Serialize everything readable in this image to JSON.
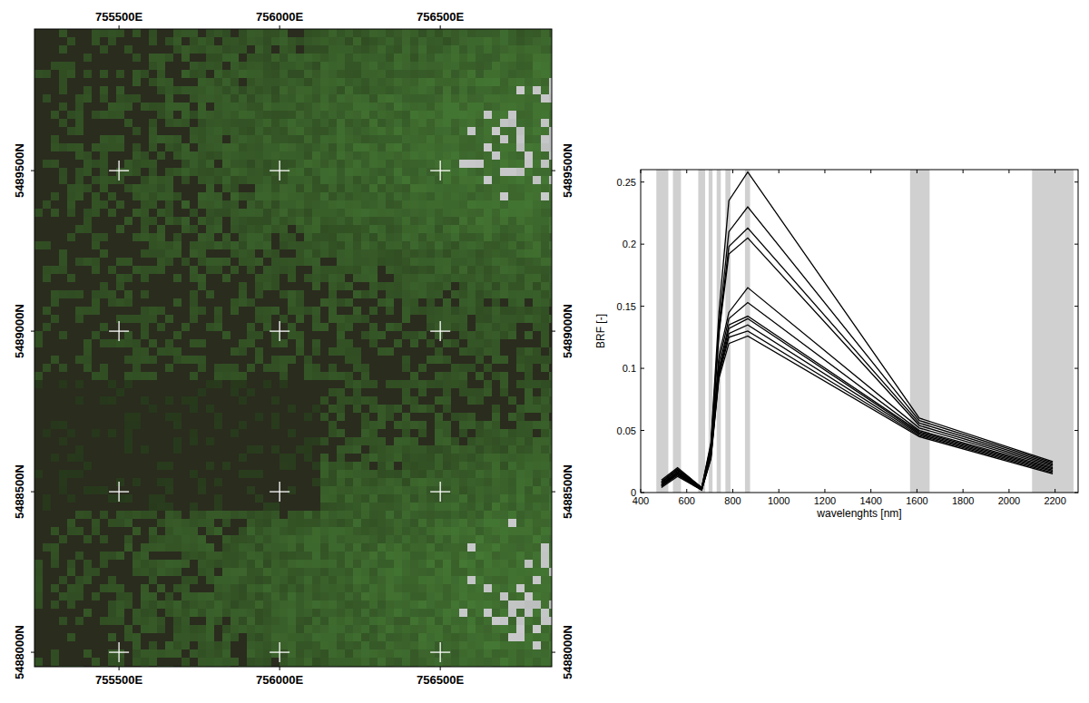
{
  "chart_data": [
    {
      "type": "image",
      "xlim": [
        755237,
        756847
      ],
      "ylim": [
        5487955,
        5489941
      ],
      "xticks": [
        {
          "value": 755500,
          "label": "755500E"
        },
        {
          "value": 756000,
          "label": "756000E"
        },
        {
          "value": 756500,
          "label": "756500E"
        }
      ],
      "yticks": [
        {
          "value": 5488000,
          "label": "5488000N"
        },
        {
          "value": 5488500,
          "label": "5488500N"
        },
        {
          "value": 5489000,
          "label": "5489000N"
        },
        {
          "value": 5489500,
          "label": "5489500N"
        }
      ],
      "grid": true
    },
    {
      "type": "line",
      "x_label": "wavelenghts [nm]",
      "y_label": "BRF [-]",
      "xlim": [
        400,
        2300
      ],
      "ylim": [
        0,
        0.26
      ],
      "xticks": [
        400,
        600,
        800,
        1000,
        1200,
        1400,
        1600,
        1800,
        2000,
        2200
      ],
      "yticks": [
        0,
        0.05,
        0.1,
        0.15,
        0.2,
        0.25
      ],
      "bands": [
        [
          468,
          520
        ],
        [
          540,
          575
        ],
        [
          650,
          680
        ],
        [
          695,
          712
        ],
        [
          730,
          748
        ],
        [
          768,
          790
        ],
        [
          853,
          875
        ],
        [
          1570,
          1655
        ],
        [
          2100,
          2280
        ]
      ],
      "x": [
        490,
        560,
        665,
        705,
        740,
        783,
        865,
        1610,
        2190
      ],
      "series": [
        {
          "color": "#000000",
          "values": [
            0.01,
            0.02,
            0.004,
            0.04,
            0.145,
            0.235,
            0.258,
            0.06,
            0.025
          ]
        },
        {
          "color": "#000000",
          "values": [
            0.009,
            0.019,
            0.004,
            0.038,
            0.135,
            0.21,
            0.23,
            0.058,
            0.024
          ]
        },
        {
          "color": "#000000",
          "values": [
            0.008,
            0.018,
            0.004,
            0.036,
            0.13,
            0.198,
            0.213,
            0.056,
            0.023
          ]
        },
        {
          "color": "#000000",
          "values": [
            0.008,
            0.018,
            0.003,
            0.035,
            0.128,
            0.192,
            0.205,
            0.054,
            0.022
          ]
        },
        {
          "color": "#000000",
          "values": [
            0.007,
            0.017,
            0.003,
            0.033,
            0.11,
            0.145,
            0.165,
            0.052,
            0.021
          ]
        },
        {
          "color": "#000000",
          "values": [
            0.007,
            0.016,
            0.003,
            0.032,
            0.105,
            0.14,
            0.153,
            0.05,
            0.02
          ]
        },
        {
          "color": "#000000",
          "values": [
            0.006,
            0.016,
            0.003,
            0.031,
            0.1,
            0.135,
            0.142,
            0.049,
            0.019
          ]
        },
        {
          "color": "#000000",
          "values": [
            0.006,
            0.015,
            0.003,
            0.03,
            0.098,
            0.132,
            0.14,
            0.048,
            0.018
          ]
        },
        {
          "color": "#000000",
          "values": [
            0.005,
            0.015,
            0.002,
            0.029,
            0.096,
            0.128,
            0.135,
            0.047,
            0.017
          ]
        },
        {
          "color": "#000000",
          "values": [
            0.005,
            0.014,
            0.002,
            0.028,
            0.094,
            0.125,
            0.13,
            0.046,
            0.016
          ]
        },
        {
          "color": "#000000",
          "values": [
            0.004,
            0.013,
            0.002,
            0.027,
            0.092,
            0.12,
            0.126,
            0.045,
            0.015
          ]
        }
      ]
    }
  ]
}
